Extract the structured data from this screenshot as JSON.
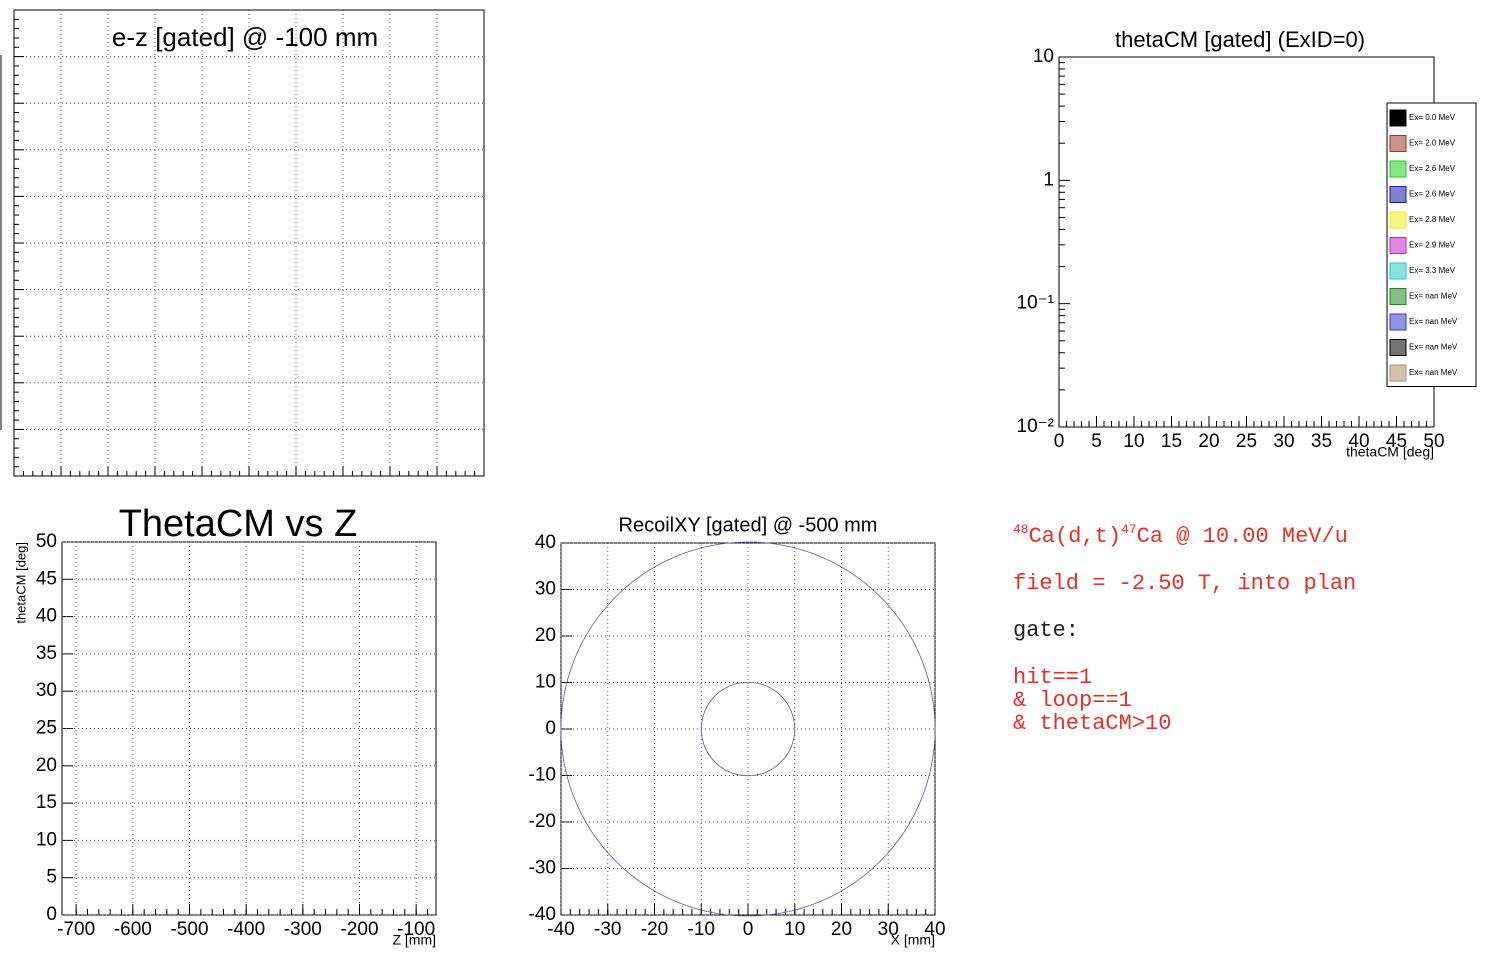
{
  "chart_data": [
    {
      "type": "scatter",
      "title": "e-z [gated] @  -100 mm",
      "grid": true
    },
    {
      "type": "histogram",
      "title": "thetaCM [gated] (ExID=0)",
      "xlabel": "thetaCM [deg]",
      "xlim": [
        0,
        50
      ],
      "xticks": [
        0,
        5,
        10,
        15,
        20,
        25,
        30,
        35,
        40,
        45,
        50
      ],
      "ylim": [
        0.01,
        10
      ],
      "log_y": true,
      "yticks": [
        {
          "value": 0.01,
          "label": "10⁻²"
        },
        {
          "value": 0.1,
          "label": "10⁻¹"
        },
        1,
        10
      ],
      "grid": false,
      "legend": "right",
      "series": [
        {
          "name": "Ex=  0.0 MeV",
          "color": "#000000"
        },
        {
          "name": "Ex=  2.0 MeV",
          "color": "#a0362a"
        },
        {
          "name": "Ex=  2.6 MeV",
          "color": "#22cc22"
        },
        {
          "name": "Ex=  2.6 MeV",
          "color": "#1a1aa6"
        },
        {
          "name": "Ex=  2.8 MeV",
          "color": "#eeee22"
        },
        {
          "name": "Ex=  2.9 MeV",
          "color": "#cc22cc"
        },
        {
          "name": "Ex=  3.3 MeV",
          "color": "#22cccc"
        },
        {
          "name": "Ex=  nan MeV",
          "color": "#228822"
        },
        {
          "name": "Ex=  nan MeV",
          "color": "#3a3acc"
        },
        {
          "name": "Ex=  nan MeV",
          "color": "#000000"
        },
        {
          "name": "Ex=  nan MeV",
          "color": "#b09070"
        }
      ]
    },
    {
      "type": "scatter",
      "title": "ThetaCM vs Z",
      "xlabel": "Z [mm]",
      "ylabel": "thetaCM [deg]",
      "xlim": [
        -725,
        -65
      ],
      "xticks": [
        -700,
        -600,
        -500,
        -400,
        -300,
        -200,
        -100
      ],
      "ylim": [
        0,
        50
      ],
      "yticks": [
        0,
        5,
        10,
        15,
        20,
        25,
        30,
        35,
        40,
        45,
        50
      ],
      "grid": true
    },
    {
      "type": "circles",
      "title": "RecoilXY [gated] @ -500 mm",
      "xlabel": "X [mm]",
      "xlim": [
        -40,
        40
      ],
      "xticks": [
        -40,
        -30,
        -20,
        -10,
        0,
        10,
        20,
        30,
        40
      ],
      "ylim": [
        -40,
        40
      ],
      "yticks": [
        -40,
        -30,
        -20,
        -10,
        0,
        10,
        20,
        30,
        40
      ],
      "grid": true,
      "circles": [
        {
          "x": 0,
          "y": 0,
          "r": 40,
          "color": "#5a5ab4"
        },
        {
          "x": 0,
          "y": 0,
          "r": 10,
          "color": "#5a5ab4"
        }
      ]
    }
  ],
  "notes": {
    "reaction": {
      "beam_mass": "48",
      "beam": "Ca(d,t)",
      "product_mass": "47",
      "rest": "Ca @ 10.00 MeV/u"
    },
    "field": "field = -2.50 T, into plan",
    "gate_label": "gate:",
    "gates": [
      "hit==1",
      "& loop==1",
      "& thetaCM>10"
    ]
  }
}
